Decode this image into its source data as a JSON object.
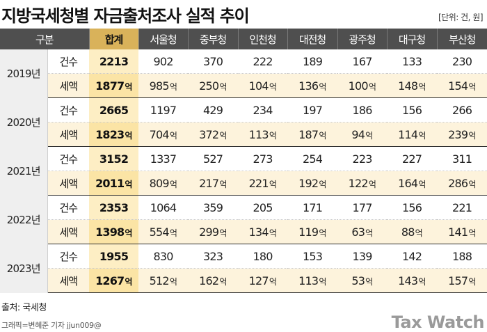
{
  "title": "지방국세청별 자금출처조사 실적 추이",
  "unit_note": "[단위: 건, 원]",
  "source": "출처: 국세청",
  "credit": "그래픽=변혜준 기자 jjun009@",
  "logo_text": "Tax Watch",
  "amount_unit": "억",
  "colors": {
    "header_bg": "#4f4f4f",
    "total_header_bg": "#d9b25a",
    "amount_row_bg": "#fdf3dc",
    "total_cell_bg": "#fbe4a5",
    "logo": "#9a9a9a"
  },
  "chart_data": {
    "type": "table",
    "title": "지방국세청별 자금출처조사 실적 추이",
    "headers": [
      "구분",
      "합계",
      "서울청",
      "중부청",
      "인천청",
      "대전청",
      "광주청",
      "대구청",
      "부산청"
    ],
    "metrics": [
      "건수",
      "세액"
    ],
    "rows": [
      {
        "year": "2019년",
        "count": [
          "2213",
          "902",
          "370",
          "222",
          "189",
          "167",
          "133",
          "230"
        ],
        "amount": [
          "1877",
          "985",
          "250",
          "104",
          "136",
          "100",
          "148",
          "154"
        ]
      },
      {
        "year": "2020년",
        "count": [
          "2665",
          "1197",
          "429",
          "234",
          "197",
          "186",
          "156",
          "266"
        ],
        "amount": [
          "1823",
          "704",
          "372",
          "113",
          "187",
          "94",
          "114",
          "239"
        ]
      },
      {
        "year": "2021년",
        "count": [
          "3152",
          "1337",
          "527",
          "273",
          "254",
          "223",
          "227",
          "311"
        ],
        "amount": [
          "2011",
          "809",
          "217",
          "221",
          "192",
          "122",
          "164",
          "286"
        ]
      },
      {
        "year": "2022년",
        "count": [
          "2353",
          "1064",
          "359",
          "205",
          "171",
          "177",
          "156",
          "221"
        ],
        "amount": [
          "1398",
          "554",
          "299",
          "134",
          "119",
          "63",
          "88",
          "141"
        ]
      },
      {
        "year": "2023년",
        "count": [
          "1955",
          "830",
          "323",
          "180",
          "153",
          "139",
          "142",
          "188"
        ],
        "amount": [
          "1267",
          "512",
          "162",
          "127",
          "113",
          "53",
          "143",
          "157"
        ]
      }
    ]
  }
}
